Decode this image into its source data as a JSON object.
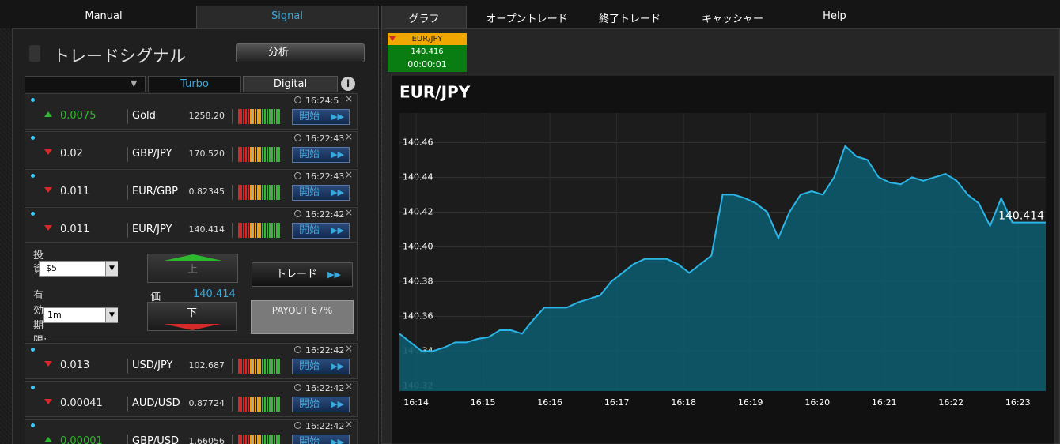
{
  "nav": {
    "tabs": [
      "Manual",
      "Signal",
      "グラフ",
      "オープントレード",
      "終了トレード",
      "キャッシャー",
      "Help"
    ]
  },
  "signals": {
    "title": "トレードシグナル",
    "analyze_button": "分析",
    "filters": [
      "Turbo",
      "Digital"
    ],
    "rows": [
      {
        "direction": "up",
        "change": "0.0075",
        "pair": "Gold",
        "price": "1258.20",
        "time": "16:24:5",
        "button": "開始"
      },
      {
        "direction": "down",
        "change": "0.02",
        "pair": "GBP/JPY",
        "price": "170.520",
        "time": "16:22:43",
        "button": "開始"
      },
      {
        "direction": "down",
        "change": "0.011",
        "pair": "EUR/GBP",
        "price": "0.82345",
        "time": "16:22:43",
        "button": "開始"
      },
      {
        "direction": "down",
        "change": "0.011",
        "pair": "EUR/JPY",
        "price": "140.414",
        "time": "16:22:42",
        "button": "開始",
        "trade_form": {
          "investment_label": "投資:",
          "investment": "$5",
          "expiry_label": "有効期限:",
          "expiry": "1m",
          "up_button": "上",
          "price_label": "価",
          "price": "140.414",
          "down_button": "下",
          "trade_button": "トレード",
          "payout": "PAYOUT 67%"
        }
      },
      {
        "direction": "down",
        "change": "0.013",
        "pair": "USD/JPY",
        "price": "102.687",
        "time": "16:22:42",
        "button": "開始"
      },
      {
        "direction": "down",
        "change": "0.00041",
        "pair": "AUD/USD",
        "price": "0.87724",
        "time": "16:22:42",
        "button": "開始"
      },
      {
        "direction": "up",
        "change": "0.00001",
        "pair": "GBP/USD",
        "price": "1.66056",
        "time": "16:22:42",
        "button": "開始"
      }
    ]
  },
  "ticker": {
    "pair": "EUR/JPY",
    "price": "140.416",
    "timer": "00:00:01"
  },
  "chart_data": {
    "type": "area",
    "title": "EUR/JPY",
    "color": "#2bb5e6",
    "fill": "#0d5a6d",
    "grid": true,
    "values": [
      140.35,
      140.345,
      140.34,
      140.34,
      140.342,
      140.345,
      140.345,
      140.347,
      140.348,
      140.352,
      140.352,
      140.35,
      140.358,
      140.365,
      140.365,
      140.365,
      140.368,
      140.37,
      140.372,
      140.38,
      140.385,
      140.39,
      140.393,
      140.393,
      140.393,
      140.39,
      140.385,
      140.39,
      140.395,
      140.43,
      140.43,
      140.428,
      140.425,
      140.42,
      140.405,
      140.42,
      140.43,
      140.432,
      140.43,
      140.44,
      140.458,
      140.452,
      140.45,
      140.44,
      140.437,
      140.436,
      140.44,
      140.438,
      140.44,
      140.442,
      140.438,
      140.43,
      140.425,
      140.412,
      140.428,
      140.414,
      140.414,
      140.414,
      140.414
    ],
    "xlim": [
      0,
      58
    ],
    "xticks": [
      {
        "value": 1.5,
        "label": "16:14"
      },
      {
        "value": 7.5,
        "label": "16:15"
      },
      {
        "value": 13.5,
        "label": "16:16"
      },
      {
        "value": 19.5,
        "label": "16:17"
      },
      {
        "value": 25.5,
        "label": "16:18"
      },
      {
        "value": 31.5,
        "label": "16:19"
      },
      {
        "value": 37.5,
        "label": "16:20"
      },
      {
        "value": 43.5,
        "label": "16:21"
      },
      {
        "value": 49.5,
        "label": "16:22"
      },
      {
        "value": 55.5,
        "label": "16:23"
      }
    ],
    "ylim": [
      140.317,
      140.477
    ],
    "yticks": [
      140.32,
      140.34,
      140.36,
      140.38,
      {
        "value": 140.4,
        "label": "140.40"
      },
      140.42,
      140.44,
      140.46
    ]
  }
}
